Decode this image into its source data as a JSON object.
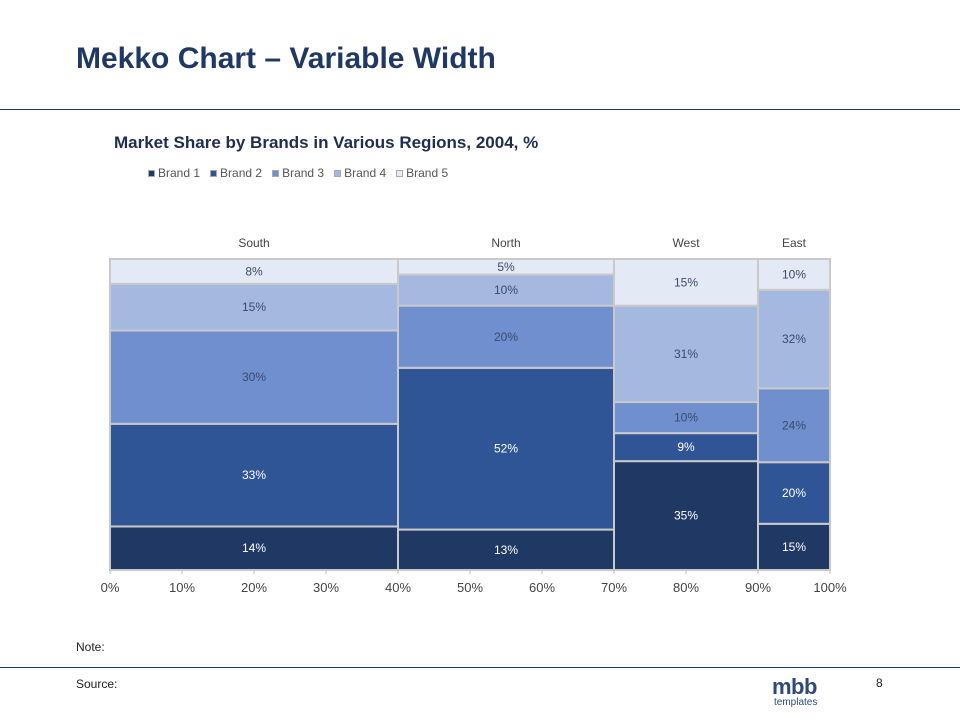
{
  "slide": {
    "title": "Mekko Chart – Variable Width",
    "note_label": "Note:",
    "source_label": "Source:",
    "page_number": "8",
    "logo": {
      "word": "mbb",
      "sub": "templates"
    }
  },
  "chart_data": {
    "type": "mekko",
    "title": "Market Share by Brands in Various Regions, 2004, %",
    "series_names": [
      "Brand 1",
      "Brand 2",
      "Brand 3",
      "Brand 4",
      "Brand 5"
    ],
    "colors": [
      "#1f3864",
      "#2f5597",
      "#6f8fcf",
      "#a4b8e0",
      "#e4eaf5"
    ],
    "x_ticks": [
      "0%",
      "10%",
      "20%",
      "30%",
      "40%",
      "50%",
      "60%",
      "70%",
      "80%",
      "90%",
      "100%"
    ],
    "xlim": [
      0,
      100
    ],
    "legend_position": "top-left",
    "columns": [
      {
        "label": "South",
        "width": 40,
        "values": [
          14,
          33,
          30,
          15,
          8
        ]
      },
      {
        "label": "North",
        "width": 30,
        "values": [
          13,
          52,
          20,
          10,
          5
        ]
      },
      {
        "label": "West",
        "width": 20,
        "values": [
          35,
          9,
          10,
          31,
          15
        ]
      },
      {
        "label": "East",
        "width": 10,
        "values": [
          15,
          20,
          24,
          32,
          10
        ]
      }
    ]
  }
}
